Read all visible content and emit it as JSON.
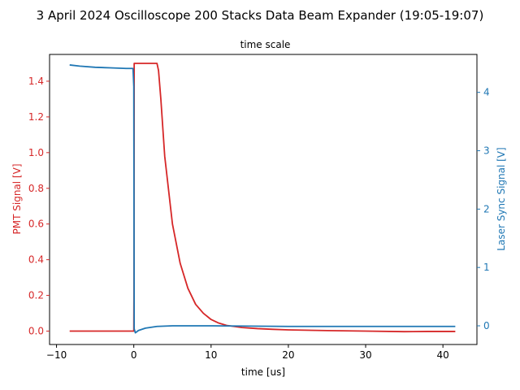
{
  "chart_data": {
    "type": "line",
    "title": "3 April 2024 Oscilloscope 200 Stacks Data Beam Expander (19:05-19:07)",
    "subtitle": "time scale",
    "xlabel": "time [us]",
    "ylabel_left": "PMT Signal [V]",
    "ylabel_right": "Laser Sync Signal [V]",
    "xlim": [
      -10.9,
      44.4
    ],
    "ylim_left": [
      -0.075,
      1.55
    ],
    "ylim_right": [
      -0.32,
      4.65
    ],
    "xticks": [
      -10,
      0,
      10,
      20,
      30,
      40
    ],
    "xtick_labels": [
      "−10",
      "0",
      "10",
      "20",
      "30",
      "40"
    ],
    "yticks_left": [
      0.0,
      0.2,
      0.4,
      0.6,
      0.8,
      1.0,
      1.2,
      1.4
    ],
    "ytick_labels_left": [
      "0.0",
      "0.2",
      "0.4",
      "0.6",
      "0.8",
      "1.0",
      "1.2",
      "1.4"
    ],
    "yticks_right": [
      0,
      1,
      2,
      3,
      4
    ],
    "ytick_labels_right": [
      "0",
      "1",
      "2",
      "3",
      "4"
    ],
    "grid": false,
    "colors": {
      "left": "#d62728",
      "right": "#1f77b4"
    },
    "series": [
      {
        "axis": "left",
        "color": "#d62728",
        "x": [
          -8.3,
          -4,
          0,
          0.02,
          0.05,
          1,
          2,
          3,
          3.2,
          3.5,
          4,
          5,
          6,
          7,
          8,
          9,
          10,
          11,
          12,
          14,
          16,
          18,
          20,
          25,
          30,
          35,
          38,
          41.6
        ],
        "y": [
          0.0,
          0.0,
          0.0,
          0.2,
          1.5,
          1.5,
          1.5,
          1.5,
          1.46,
          1.3,
          0.98,
          0.6,
          0.38,
          0.24,
          0.15,
          0.1,
          0.065,
          0.045,
          0.032,
          0.02,
          0.014,
          0.01,
          0.007,
          0.003,
          0.0,
          -0.003,
          -0.002,
          -0.002
        ]
      },
      {
        "axis": "right",
        "color": "#1f77b4",
        "x": [
          -8.3,
          -7,
          -5,
          -3,
          -1,
          -0.1,
          0,
          0.05,
          0.2,
          0.6,
          1.5,
          3,
          5,
          10,
          20,
          30,
          41.6
        ],
        "y": [
          4.47,
          4.45,
          4.43,
          4.42,
          4.41,
          4.41,
          4.1,
          -0.05,
          -0.12,
          -0.08,
          -0.04,
          -0.01,
          0.0,
          0.0,
          -0.01,
          -0.01,
          -0.01
        ]
      }
    ]
  }
}
